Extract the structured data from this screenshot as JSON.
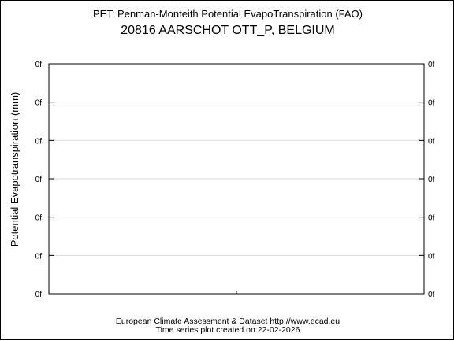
{
  "chart_data": {
    "type": "line",
    "title": "PET: Penman-Monteith Potential EvapoTranspiration (FAO)",
    "subtitle": "20816 AARSCHOT OTT_P, BELGIUM",
    "xlabel": "",
    "ylabel": "Potential Evapotranspiration (mm)",
    "y_ticks": [
      "0f",
      "0f",
      "0f",
      "0f",
      "0f",
      "0f",
      "0f"
    ],
    "x_ticks": [],
    "grid": true,
    "series": []
  },
  "footer": {
    "line1": "European Climate Assessment & Dataset  http://www.ecad.eu",
    "line2": "Time series plot created on 22-02-2026"
  }
}
